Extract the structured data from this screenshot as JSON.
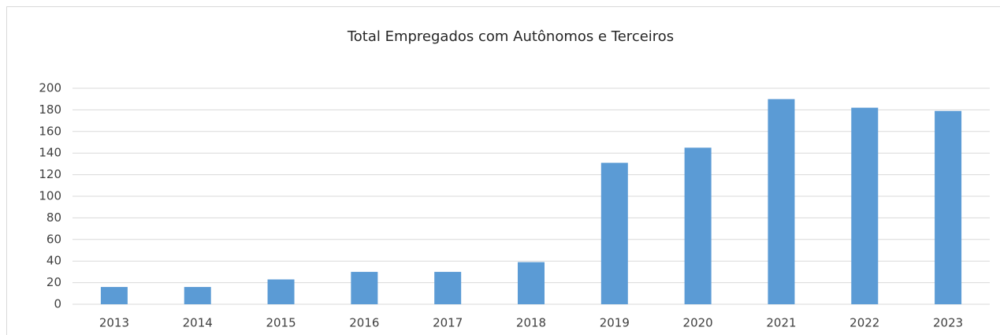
{
  "chart_data": {
    "type": "bar",
    "title": "Total Empregados com Autônomos e Terceiros",
    "categories": [
      "2013",
      "2014",
      "2015",
      "2016",
      "2017",
      "2018",
      "2019",
      "2020",
      "2021",
      "2022",
      "2023"
    ],
    "values": [
      16,
      16,
      23,
      30,
      30,
      39,
      131,
      145,
      190,
      182,
      179
    ],
    "color": "#5b9bd5",
    "ylim": [
      0,
      200
    ],
    "yticks": [
      0,
      20,
      40,
      60,
      80,
      100,
      120,
      140,
      160,
      180,
      200
    ],
    "grid": true
  }
}
